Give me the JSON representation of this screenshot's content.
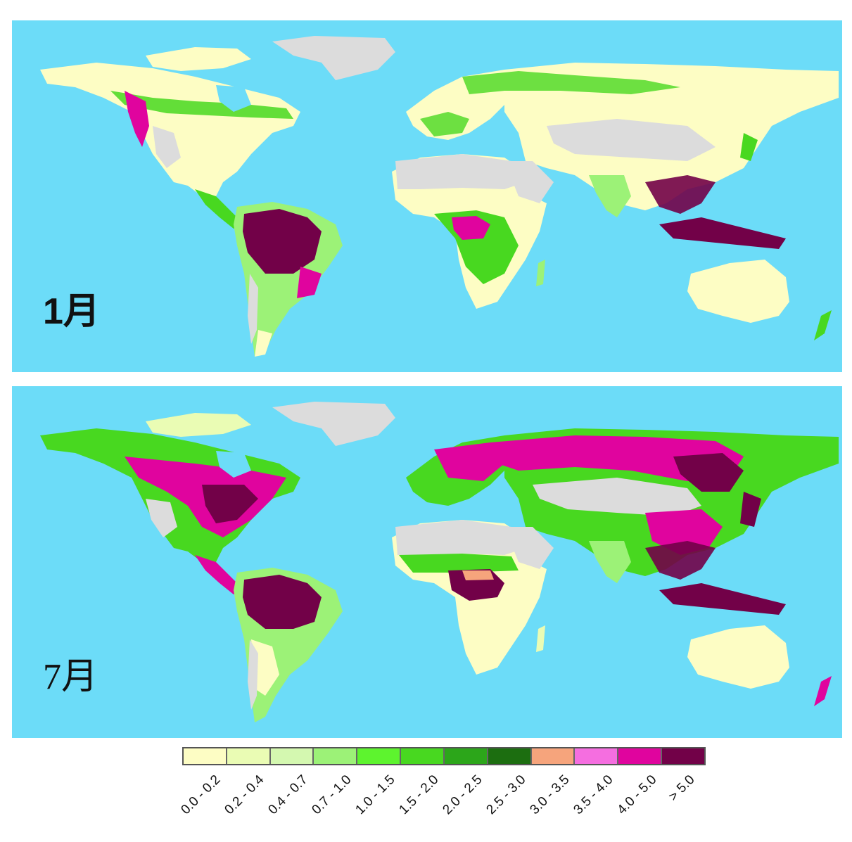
{
  "panels": [
    {
      "id": "jan",
      "label": "1月"
    },
    {
      "id": "jul",
      "label": "7月"
    }
  ],
  "colors": {
    "ocean": "#6cdcf8",
    "no_data": "#dcdcdc",
    "land_low": "#fdfdc4"
  },
  "legend": {
    "classes": [
      {
        "label": "0.0 - 0.2",
        "color": "#fdfdc4"
      },
      {
        "label": "0.2 - 0.4",
        "color": "#eafcb4"
      },
      {
        "label": "0.4 - 0.7",
        "color": "#d4f8b0"
      },
      {
        "label": "0.7 - 1.0",
        "color": "#9cf277"
      },
      {
        "label": "1.0 - 1.5",
        "color": "#5df42e"
      },
      {
        "label": "1.5 - 2.0",
        "color": "#48d820"
      },
      {
        "label": "2.0 - 2.5",
        "color": "#2ca61a"
      },
      {
        "label": "2.5 - 3.0",
        "color": "#1c6e10"
      },
      {
        "label": "3.0 - 3.5",
        "color": "#f6a47c"
      },
      {
        "label": "3.5 - 4.0",
        "color": "#f56ee0"
      },
      {
        "label": "4.0 - 5.0",
        "color": "#e0049e"
      },
      {
        "label": "> 5.0",
        "color": "#720148"
      }
    ]
  }
}
